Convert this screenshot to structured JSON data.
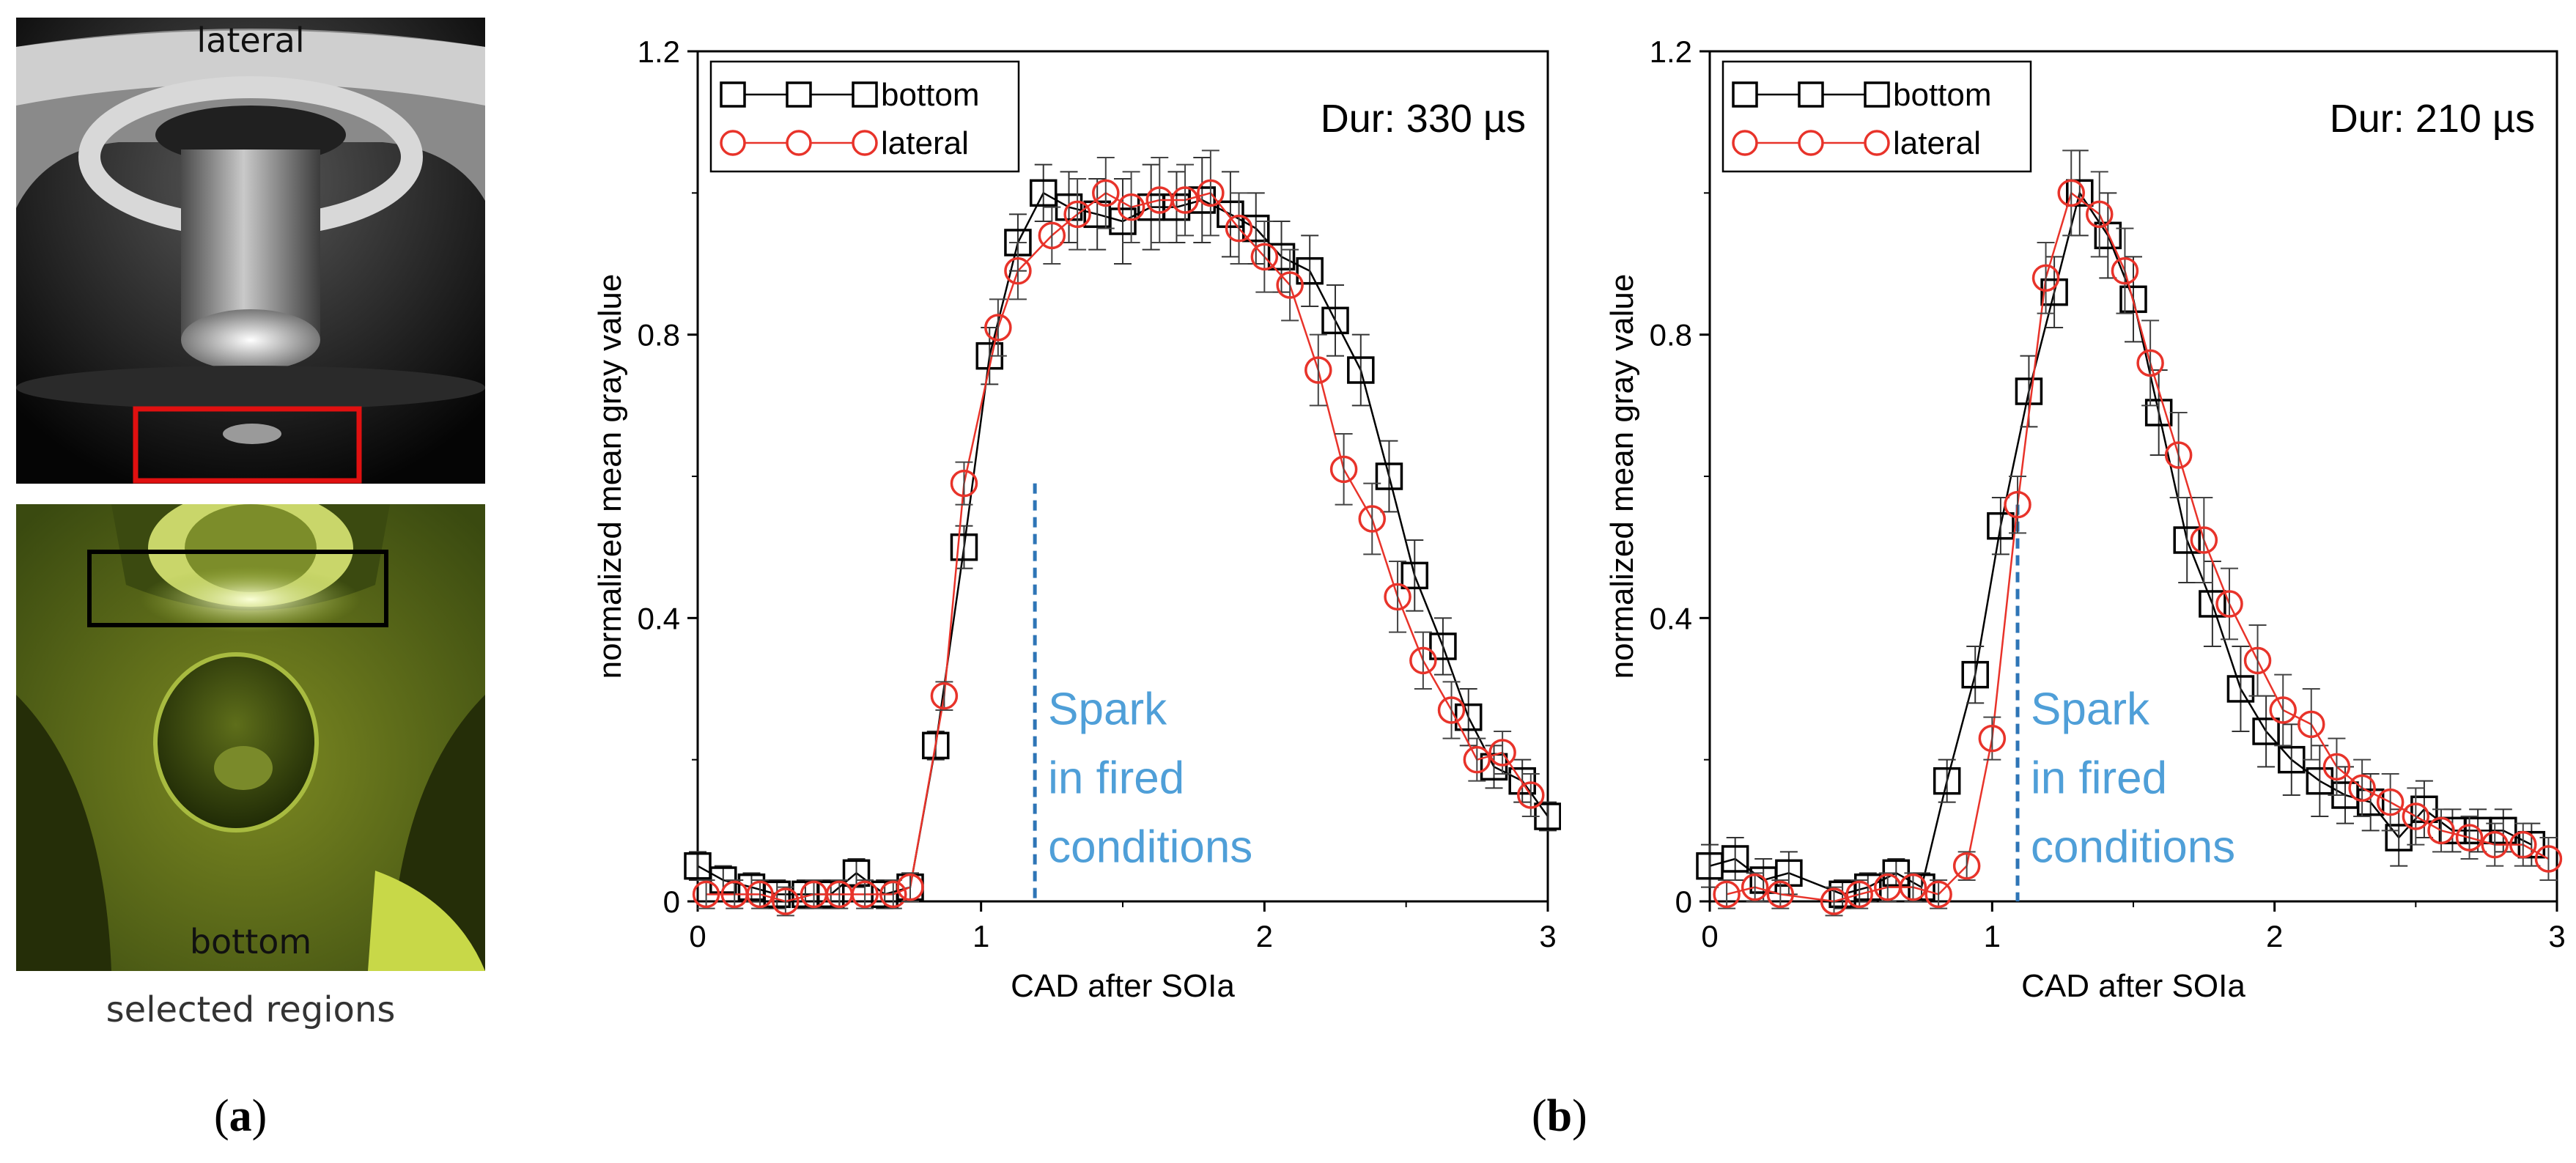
{
  "panel_a": {
    "lateral_label": "lateral",
    "bottom_label": "bottom",
    "caption": "selected regions",
    "sublabel": "a"
  },
  "panel_b": {
    "sublabel": "b"
  },
  "chart_data": [
    {
      "type": "line",
      "title": "Dur: 330 µs",
      "xlabel": "CAD after SOIa",
      "ylabel": "normalized mean gray value",
      "xlim": [
        0,
        3
      ],
      "ylim": [
        0,
        1.2
      ],
      "xticks": [
        "0",
        "1",
        "2",
        "3"
      ],
      "yticks": [
        "0",
        "0.4",
        "0.8",
        "1.2"
      ],
      "legend": "top-left",
      "annotation": {
        "text_lines": [
          "Spark",
          "in fired",
          "conditions"
        ],
        "x": 1.19,
        "y_top": 0.59
      },
      "series": [
        {
          "name": "bottom",
          "color": "#000000",
          "marker": "square",
          "points": [
            [
              0,
              0.05,
              0.02
            ],
            [
              0.09,
              0.03,
              0.02
            ],
            [
              0.19,
              0.02,
              0.02
            ],
            [
              0.28,
              0.01,
              0.02
            ],
            [
              0.38,
              0.01,
              0.02
            ],
            [
              0.47,
              0.01,
              0.02
            ],
            [
              0.56,
              0.04,
              0.02
            ],
            [
              0.66,
              0.01,
              0.02
            ],
            [
              0.75,
              0.02,
              0.02
            ],
            [
              0.84,
              0.22,
              0.02
            ],
            [
              0.94,
              0.5,
              0.03
            ],
            [
              1.03,
              0.77,
              0.04
            ],
            [
              1.13,
              0.93,
              0.04
            ],
            [
              1.22,
              1.0,
              0.04
            ],
            [
              1.31,
              0.98,
              0.05
            ],
            [
              1.41,
              0.97,
              0.05
            ],
            [
              1.5,
              0.96,
              0.06
            ],
            [
              1.6,
              0.98,
              0.06
            ],
            [
              1.69,
              0.98,
              0.05
            ],
            [
              1.78,
              0.99,
              0.06
            ],
            [
              1.88,
              0.97,
              0.06
            ],
            [
              1.97,
              0.95,
              0.05
            ],
            [
              2.06,
              0.91,
              0.05
            ],
            [
              2.16,
              0.89,
              0.05
            ],
            [
              2.25,
              0.82,
              0.05
            ],
            [
              2.34,
              0.75,
              0.05
            ],
            [
              2.44,
              0.6,
              0.05
            ],
            [
              2.53,
              0.46,
              0.05
            ],
            [
              2.63,
              0.36,
              0.04
            ],
            [
              2.72,
              0.26,
              0.04
            ],
            [
              2.81,
              0.19,
              0.03
            ],
            [
              2.91,
              0.17,
              0.03
            ],
            [
              3.0,
              0.12,
              0.02
            ]
          ]
        },
        {
          "name": "lateral",
          "color": "#e8332a",
          "marker": "circle",
          "points": [
            [
              0.03,
              0.01,
              0.02
            ],
            [
              0.13,
              0.01,
              0.02
            ],
            [
              0.22,
              0.01,
              0.02
            ],
            [
              0.31,
              0.0,
              0.02
            ],
            [
              0.41,
              0.01,
              0.02
            ],
            [
              0.5,
              0.01,
              0.02
            ],
            [
              0.59,
              0.01,
              0.02
            ],
            [
              0.69,
              0.01,
              0.02
            ],
            [
              0.75,
              0.02,
              0.02
            ],
            [
              0.87,
              0.29,
              0.02
            ],
            [
              0.94,
              0.59,
              0.03
            ],
            [
              1.06,
              0.81,
              0.04
            ],
            [
              1.13,
              0.89,
              0.04
            ],
            [
              1.25,
              0.94,
              0.04
            ],
            [
              1.34,
              0.97,
              0.05
            ],
            [
              1.44,
              1.0,
              0.05
            ],
            [
              1.53,
              0.98,
              0.05
            ],
            [
              1.63,
              0.99,
              0.06
            ],
            [
              1.72,
              0.99,
              0.05
            ],
            [
              1.81,
              1.0,
              0.06
            ],
            [
              1.91,
              0.95,
              0.05
            ],
            [
              2.0,
              0.91,
              0.05
            ],
            [
              2.09,
              0.87,
              0.05
            ],
            [
              2.19,
              0.75,
              0.05
            ],
            [
              2.28,
              0.61,
              0.05
            ],
            [
              2.38,
              0.54,
              0.05
            ],
            [
              2.47,
              0.43,
              0.05
            ],
            [
              2.56,
              0.34,
              0.04
            ],
            [
              2.66,
              0.27,
              0.04
            ],
            [
              2.75,
              0.2,
              0.03
            ],
            [
              2.84,
              0.21,
              0.03
            ],
            [
              2.94,
              0.15,
              0.03
            ]
          ]
        }
      ]
    },
    {
      "type": "line",
      "title": "Dur: 210 µs",
      "xlabel": "CAD after SOIa",
      "ylabel": "normalized mean gray value",
      "xlim": [
        0,
        3
      ],
      "ylim": [
        0,
        1.2
      ],
      "xticks": [
        "0",
        "1",
        "2",
        "3"
      ],
      "yticks": [
        "0",
        "0.4",
        "0.8",
        "1.2"
      ],
      "legend": "top-left",
      "annotation": {
        "text_lines": [
          "Spark",
          "in fired",
          "conditions"
        ],
        "x": 1.09,
        "y_top": 0.56
      },
      "series": [
        {
          "name": "bottom",
          "color": "#000000",
          "marker": "square",
          "points": [
            [
              0,
              0.05,
              0.03
            ],
            [
              0.09,
              0.06,
              0.03
            ],
            [
              0.19,
              0.03,
              0.03
            ],
            [
              0.28,
              0.04,
              0.03
            ],
            [
              0.47,
              0.01,
              0.02
            ],
            [
              0.56,
              0.02,
              0.02
            ],
            [
              0.66,
              0.04,
              0.02
            ],
            [
              0.75,
              0.02,
              0.02
            ],
            [
              0.84,
              0.17,
              0.03
            ],
            [
              0.94,
              0.32,
              0.04
            ],
            [
              1.03,
              0.53,
              0.04
            ],
            [
              1.13,
              0.72,
              0.05
            ],
            [
              1.22,
              0.86,
              0.05
            ],
            [
              1.31,
              1.0,
              0.06
            ],
            [
              1.41,
              0.94,
              0.06
            ],
            [
              1.5,
              0.85,
              0.06
            ],
            [
              1.59,
              0.69,
              0.06
            ],
            [
              1.69,
              0.51,
              0.06
            ],
            [
              1.78,
              0.42,
              0.06
            ],
            [
              1.88,
              0.3,
              0.06
            ],
            [
              1.97,
              0.24,
              0.05
            ],
            [
              2.06,
              0.2,
              0.05
            ],
            [
              2.16,
              0.17,
              0.05
            ],
            [
              2.25,
              0.15,
              0.04
            ],
            [
              2.34,
              0.14,
              0.04
            ],
            [
              2.44,
              0.09,
              0.04
            ],
            [
              2.53,
              0.13,
              0.04
            ],
            [
              2.63,
              0.1,
              0.03
            ],
            [
              2.72,
              0.1,
              0.03
            ],
            [
              2.81,
              0.1,
              0.03
            ],
            [
              2.91,
              0.08,
              0.03
            ]
          ]
        },
        {
          "name": "lateral",
          "color": "#e8332a",
          "marker": "circle",
          "points": [
            [
              0.06,
              0.01,
              0.02
            ],
            [
              0.16,
              0.02,
              0.02
            ],
            [
              0.25,
              0.01,
              0.02
            ],
            [
              0.44,
              0.0,
              0.02
            ],
            [
              0.53,
              0.01,
              0.02
            ],
            [
              0.63,
              0.02,
              0.02
            ],
            [
              0.72,
              0.02,
              0.02
            ],
            [
              0.81,
              0.01,
              0.02
            ],
            [
              0.91,
              0.05,
              0.02
            ],
            [
              1.0,
              0.23,
              0.03
            ],
            [
              1.09,
              0.56,
              0.04
            ],
            [
              1.19,
              0.88,
              0.05
            ],
            [
              1.28,
              1.0,
              0.06
            ],
            [
              1.38,
              0.97,
              0.06
            ],
            [
              1.47,
              0.89,
              0.06
            ],
            [
              1.56,
              0.76,
              0.06
            ],
            [
              1.66,
              0.63,
              0.06
            ],
            [
              1.75,
              0.51,
              0.06
            ],
            [
              1.84,
              0.42,
              0.05
            ],
            [
              1.94,
              0.34,
              0.05
            ],
            [
              2.03,
              0.27,
              0.05
            ],
            [
              2.13,
              0.25,
              0.05
            ],
            [
              2.22,
              0.19,
              0.04
            ],
            [
              2.31,
              0.16,
              0.04
            ],
            [
              2.41,
              0.14,
              0.04
            ],
            [
              2.5,
              0.12,
              0.04
            ],
            [
              2.59,
              0.1,
              0.03
            ],
            [
              2.69,
              0.09,
              0.03
            ],
            [
              2.78,
              0.08,
              0.03
            ],
            [
              2.88,
              0.08,
              0.03
            ],
            [
              2.97,
              0.06,
              0.03
            ]
          ]
        }
      ]
    }
  ],
  "colors": {
    "annotation": "#4f9fd8",
    "bottom": "#000000",
    "lateral": "#e8332a"
  }
}
